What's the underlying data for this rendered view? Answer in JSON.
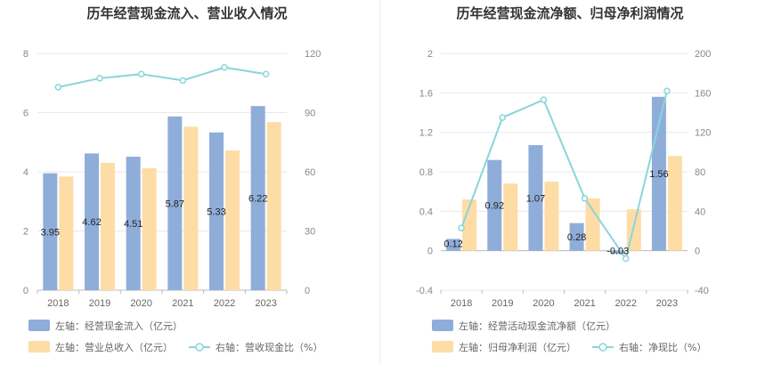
{
  "colors": {
    "bar_primary": "#8fadd9",
    "bar_secondary": "#fddca6",
    "line": "#8ad5db",
    "grid": "#e8e8e8",
    "axis": "#bbbbbb",
    "divider": "#eeeeee"
  },
  "chart_data": [
    {
      "type": "bar",
      "title": "历年经营现金流入、营业收入情况",
      "categories": [
        "2018",
        "2019",
        "2020",
        "2021",
        "2022",
        "2023"
      ],
      "left_axis": {
        "ticks": [
          "0",
          "2",
          "4",
          "6",
          "8"
        ],
        "range": [
          0,
          8
        ]
      },
      "right_axis": {
        "ticks": [
          "0",
          "30",
          "60",
          "90",
          "120"
        ],
        "range": [
          0,
          120
        ]
      },
      "series": [
        {
          "name": "左轴：经营现金流入（亿元）",
          "kind": "bar",
          "axis": "left",
          "color": "#8fadd9",
          "values": [
            3.95,
            4.62,
            4.51,
            5.87,
            5.33,
            6.22
          ],
          "labels": [
            "3.95",
            "4.62",
            "4.51",
            "5.87",
            "5.33",
            "6.22"
          ]
        },
        {
          "name": "左轴：营业总收入（亿元）",
          "kind": "bar",
          "axis": "left",
          "color": "#fddca6",
          "values": [
            3.84,
            4.3,
            4.12,
            5.52,
            4.72,
            5.68
          ]
        },
        {
          "name": "右轴：营收现金比（%）",
          "kind": "line",
          "axis": "right",
          "color": "#8ad5db",
          "values": [
            102.9,
            107.4,
            109.5,
            106.3,
            112.9,
            109.5
          ]
        }
      ]
    },
    {
      "type": "bar",
      "title": "历年经营现金流净额、归母净利润情况",
      "categories": [
        "2018",
        "2019",
        "2020",
        "2021",
        "2022",
        "2023"
      ],
      "left_axis": {
        "ticks": [
          "-0.4",
          "0",
          "0.4",
          "0.8",
          "1.2",
          "1.6",
          "2"
        ],
        "range": [
          -0.4,
          2
        ]
      },
      "right_axis": {
        "ticks": [
          "-40",
          "0",
          "40",
          "80",
          "120",
          "160",
          "200"
        ],
        "range": [
          -40,
          200
        ]
      },
      "series": [
        {
          "name": "左轴：经营活动现金流净额（亿元）",
          "kind": "bar",
          "axis": "left",
          "color": "#8fadd9",
          "values": [
            0.12,
            0.92,
            1.07,
            0.28,
            -0.03,
            1.56
          ],
          "labels": [
            "0.12",
            "0.92",
            "1.07",
            "0.28",
            "-0.03",
            "1.56"
          ]
        },
        {
          "name": "左轴：归母净利润（亿元）",
          "kind": "bar",
          "axis": "left",
          "color": "#fddca6",
          "values": [
            0.52,
            0.68,
            0.7,
            0.53,
            0.42,
            0.96
          ]
        },
        {
          "name": "右轴：净现比（%）",
          "kind": "line",
          "axis": "right",
          "color": "#8ad5db",
          "values": [
            23,
            135,
            153,
            53,
            -8,
            162
          ]
        }
      ]
    }
  ]
}
